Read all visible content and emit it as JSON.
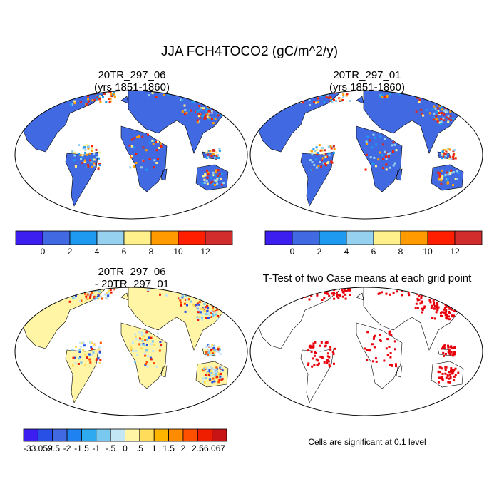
{
  "title": "JJA FCH4TOCO2 (gC/m^2/y)",
  "panels": [
    {
      "id": "p1",
      "title_line1": "20TR_297_06",
      "title_line2": "(yrs 1851-1860)",
      "background": "#4169e1"
    },
    {
      "id": "p2",
      "title_line1": "20TR_297_01",
      "title_line2": "(yrs 1851-1860)",
      "background": "#4169e1"
    },
    {
      "id": "p3",
      "title_line1": "20TR_297_06",
      "title_line2": "- 20TR_297_01",
      "background": "#fff5a5"
    },
    {
      "id": "p4",
      "title_line1": "T-Test of two Case means at each grid point",
      "background": "#ffffff"
    }
  ],
  "colorbar_top": {
    "colors": [
      "#3c1ef0",
      "#4169e1",
      "#1e9bf0",
      "#96d2f0",
      "#fff08c",
      "#ff9b00",
      "#ff1e00",
      "#d22d2d"
    ],
    "labels": [
      "0",
      "2",
      "4",
      "6",
      "8",
      "10",
      "12"
    ]
  },
  "colorbar_diff": {
    "colors": [
      "#3c1ef0",
      "#2850e6",
      "#4169e1",
      "#1e82f0",
      "#2daaf0",
      "#78c8f0",
      "#c3e6f5",
      "#fff5a5",
      "#ffdc5a",
      "#ffb400",
      "#ff8c00",
      "#ff5000",
      "#f01e00",
      "#c81414"
    ],
    "labels": [
      "-33.059",
      "-2.5",
      "-2",
      "-1.5",
      "-1",
      "-.5",
      "0",
      ".5",
      "1",
      "1.5",
      "2",
      "2.5",
      "66.067"
    ]
  },
  "significance_note": "Cells are significant at 0.1 level",
  "colors": {
    "land_outline": "#000000",
    "ocean": "#ffffff",
    "significant": "#e8000b"
  }
}
